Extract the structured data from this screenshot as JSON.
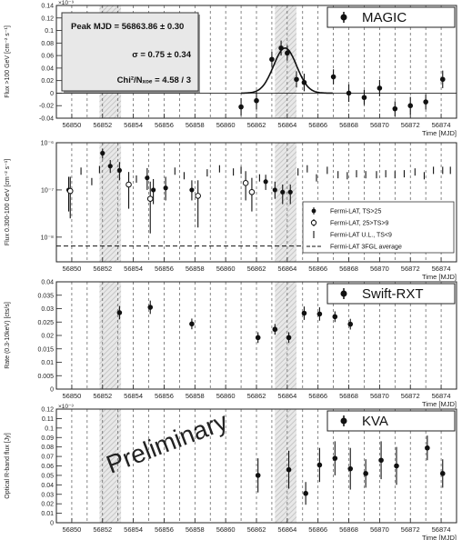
{
  "chart_data": [
    {
      "type": "scatter",
      "panel": "MAGIC",
      "title": "MAGIC",
      "ylabel": "Flux >100 GeV [cm⁻² s⁻¹]",
      "yexp": "×10⁻⁹",
      "xlabel": "Time [MJD]",
      "ylim": [
        -0.04,
        0.14
      ],
      "yticks": [
        -0.04,
        -0.02,
        0,
        0.02,
        0.04,
        0.06,
        0.08,
        0.1,
        0.12,
        0.14
      ],
      "ytick_labels": [
        "-0.04",
        "-0.02",
        "0",
        "0.02",
        "0.04",
        "0.06",
        "0.08",
        "0.1",
        "0.12",
        "0.14"
      ],
      "fit_box": {
        "line1": "Peak MJD = 56863.86 ± 0.30",
        "line2": "σ = 0.75 ± 0.34",
        "line3": "Chi²/Nₓₒₑ = 4.58 / 3"
      },
      "gaussian_fit": {
        "mean": 56863.86,
        "sigma": 0.75,
        "amplitude": 0.072
      },
      "points": [
        {
          "x": 56861.0,
          "y": -0.022,
          "err": 0.014
        },
        {
          "x": 56862.0,
          "y": -0.012,
          "err": 0.014
        },
        {
          "x": 56863.0,
          "y": 0.054,
          "err": 0.012
        },
        {
          "x": 56863.6,
          "y": 0.072,
          "err": 0.012
        },
        {
          "x": 56864.0,
          "y": 0.064,
          "err": 0.012
        },
        {
          "x": 56864.6,
          "y": 0.022,
          "err": 0.013
        },
        {
          "x": 56865.1,
          "y": 0.017,
          "err": 0.014
        },
        {
          "x": 56867.0,
          "y": 0.026,
          "err": 0.012
        },
        {
          "x": 56868.0,
          "y": 0.0,
          "err": 0.014
        },
        {
          "x": 56869.0,
          "y": -0.007,
          "err": 0.012
        },
        {
          "x": 56870.0,
          "y": 0.008,
          "err": 0.013
        },
        {
          "x": 56871.0,
          "y": -0.025,
          "err": 0.012
        },
        {
          "x": 56872.0,
          "y": -0.02,
          "err": 0.014
        },
        {
          "x": 56873.0,
          "y": -0.014,
          "err": 0.012
        },
        {
          "x": 56874.1,
          "y": 0.022,
          "err": 0.014
        }
      ]
    },
    {
      "type": "scatter",
      "panel": "Fermi-LAT",
      "ylabel": "Flux 0.300-100 GeV [cm⁻² s⁻¹]",
      "xlabel": "Time [MJD]",
      "yscale": "log",
      "ylim": [
        3e-09,
        1e-06
      ],
      "yticks": [
        1e-08,
        1e-07,
        1e-06
      ],
      "ytick_labels": [
        "10⁻⁸",
        "10⁻⁷",
        "10⁻⁶"
      ],
      "legend": {
        "position": "lower-right",
        "entries": [
          "Fermi-LAT, TS>25",
          "Fermi-LAT, 25>TS>9",
          "Fermi-LAT U.L., TS<9",
          "Fermi-LAT 3FGL average"
        ]
      },
      "average": 6.5e-09,
      "detections": [
        {
          "x": 56849.8,
          "y": 1e-07,
          "lo": 3.5e-08,
          "hi": 1.9e-07
        },
        {
          "x": 56852.0,
          "y": 6e-07,
          "lo": 4.6e-07,
          "hi": 7.4e-07
        },
        {
          "x": 56852.5,
          "y": 3.2e-07,
          "lo": 2.3e-07,
          "hi": 4.3e-07
        },
        {
          "x": 56853.1,
          "y": 2.6e-07,
          "lo": 1.6e-07,
          "hi": 3.9e-07
        },
        {
          "x": 56854.9,
          "y": 1.8e-07,
          "lo": 1e-07,
          "hi": 2.9e-07
        },
        {
          "x": 56855.3,
          "y": 1e-07,
          "lo": 5e-08,
          "hi": 1.7e-07
        },
        {
          "x": 56856.1,
          "y": 1.1e-07,
          "lo": 6e-08,
          "hi": 1.9e-07
        },
        {
          "x": 56857.8,
          "y": 1e-07,
          "lo": 6e-08,
          "hi": 1.6e-07
        },
        {
          "x": 56862.6,
          "y": 1.5e-07,
          "lo": 1e-07,
          "hi": 2.1e-07
        },
        {
          "x": 56863.2,
          "y": 1e-07,
          "lo": 6.5e-08,
          "hi": 1.5e-07
        },
        {
          "x": 56863.7,
          "y": 9e-08,
          "lo": 5e-08,
          "hi": 1.3e-07
        },
        {
          "x": 56864.2,
          "y": 9e-08,
          "lo": 5e-08,
          "hi": 1.3e-07
        }
      ],
      "marginal": [
        {
          "x": 56849.9,
          "y": 9.5e-08,
          "lo": 2.5e-08,
          "hi": 1.9e-07
        },
        {
          "x": 56853.7,
          "y": 1.3e-07,
          "lo": 4e-08,
          "hi": 2.4e-07
        },
        {
          "x": 56855.1,
          "y": 6.5e-08,
          "lo": 1.2e-08,
          "hi": 1.5e-07
        },
        {
          "x": 56858.2,
          "y": 7.5e-08,
          "lo": 1.6e-08,
          "hi": 1.6e-07
        },
        {
          "x": 56861.3,
          "y": 1.4e-07,
          "lo": 6e-08,
          "hi": 2.5e-07
        },
        {
          "x": 56861.7,
          "y": 9e-08,
          "lo": 3.5e-08,
          "hi": 1.8e-07
        }
      ],
      "upper_limits": [
        {
          "x": 56850.6,
          "y": 2.5e-07
        },
        {
          "x": 56851.3,
          "y": 1.5e-07
        },
        {
          "x": 56851.8,
          "y": 2.7e-07
        },
        {
          "x": 56854.2,
          "y": 1.7e-07
        },
        {
          "x": 56856.7,
          "y": 2.5e-07
        },
        {
          "x": 56857.3,
          "y": 2e-07
        },
        {
          "x": 56858.8,
          "y": 2.3e-07
        },
        {
          "x": 56859.6,
          "y": 2.8e-07
        },
        {
          "x": 56860.5,
          "y": 2.4e-07
        },
        {
          "x": 56861.0,
          "y": 2.6e-07
        },
        {
          "x": 56862.2,
          "y": 1.8e-07
        },
        {
          "x": 56864.7,
          "y": 2.4e-07
        },
        {
          "x": 56865.3,
          "y": 2.8e-07
        },
        {
          "x": 56865.9,
          "y": 1.8e-07
        },
        {
          "x": 56866.6,
          "y": 2.6e-07
        },
        {
          "x": 56867.3,
          "y": 2.1e-07
        },
        {
          "x": 56867.9,
          "y": 2e-07
        },
        {
          "x": 56868.5,
          "y": 2.2e-07
        },
        {
          "x": 56869.1,
          "y": 2.1e-07
        },
        {
          "x": 56869.8,
          "y": 2.1e-07
        },
        {
          "x": 56870.4,
          "y": 2.2e-07
        },
        {
          "x": 56871.0,
          "y": 2.1e-07
        },
        {
          "x": 56871.6,
          "y": 2.2e-07
        },
        {
          "x": 56872.3,
          "y": 2.4e-07
        },
        {
          "x": 56872.9,
          "y": 2e-07
        },
        {
          "x": 56873.5,
          "y": 2.6e-07
        },
        {
          "x": 56874.1,
          "y": 2.6e-07
        },
        {
          "x": 56874.6,
          "y": 2.6e-07
        }
      ]
    },
    {
      "type": "scatter",
      "panel": "Swift-RXT",
      "title": "Swift-RXT",
      "ylabel": "Rate (0.3-10keV) [cts/s]",
      "xlabel": "Time [MJD]",
      "ylim": [
        0,
        0.04
      ],
      "yticks": [
        0,
        0.005,
        0.01,
        0.015,
        0.02,
        0.025,
        0.03,
        0.035,
        0.04
      ],
      "ytick_labels": [
        "0",
        "0.005",
        "0.01",
        "0.015",
        "0.02",
        "0.025",
        "0.03",
        "0.035",
        "0.04"
      ],
      "points": [
        {
          "x": 56853.1,
          "y": 0.0285,
          "err": 0.0025
        },
        {
          "x": 56855.1,
          "y": 0.0305,
          "err": 0.0025
        },
        {
          "x": 56857.8,
          "y": 0.0243,
          "err": 0.002
        },
        {
          "x": 56862.1,
          "y": 0.0192,
          "err": 0.002
        },
        {
          "x": 56863.2,
          "y": 0.0223,
          "err": 0.002
        },
        {
          "x": 56864.1,
          "y": 0.0192,
          "err": 0.002
        },
        {
          "x": 56865.1,
          "y": 0.0283,
          "err": 0.0025
        },
        {
          "x": 56866.1,
          "y": 0.028,
          "err": 0.0025
        },
        {
          "x": 56867.1,
          "y": 0.027,
          "err": 0.002
        },
        {
          "x": 56868.1,
          "y": 0.0242,
          "err": 0.002
        }
      ]
    },
    {
      "type": "scatter",
      "panel": "KVA",
      "title": "KVA",
      "ylabel": "Optical R-band flux [Jy]",
      "yexp": "×10⁻³",
      "xlabel": "Time [MJD]",
      "ylim": [
        0,
        0.12
      ],
      "yticks": [
        0,
        0.01,
        0.02,
        0.03,
        0.04,
        0.05,
        0.06,
        0.07,
        0.08,
        0.09,
        0.1,
        0.11,
        0.12
      ],
      "ytick_labels": [
        "0",
        "0.01",
        "0.02",
        "0.03",
        "0.04",
        "0.05",
        "0.06",
        "0.07",
        "0.08",
        "0.09",
        "0.1",
        "0.11",
        "0.12"
      ],
      "watermark": "Preliminary",
      "points": [
        {
          "x": 56862.1,
          "y": 0.05,
          "err": 0.018
        },
        {
          "x": 56864.1,
          "y": 0.056,
          "err": 0.02
        },
        {
          "x": 56865.2,
          "y": 0.031,
          "err": 0.012
        },
        {
          "x": 56866.1,
          "y": 0.061,
          "err": 0.018
        },
        {
          "x": 56867.1,
          "y": 0.068,
          "err": 0.018
        },
        {
          "x": 56868.1,
          "y": 0.057,
          "err": 0.022
        },
        {
          "x": 56869.1,
          "y": 0.052,
          "err": 0.015
        },
        {
          "x": 56870.1,
          "y": 0.066,
          "err": 0.02
        },
        {
          "x": 56871.1,
          "y": 0.06,
          "err": 0.02
        },
        {
          "x": 56873.1,
          "y": 0.079,
          "err": 0.013
        },
        {
          "x": 56874.1,
          "y": 0.052,
          "err": 0.015
        }
      ]
    }
  ],
  "shared_x": {
    "xlim": [
      56849,
      56875
    ],
    "ticks": [
      56850,
      56852,
      56854,
      56856,
      56858,
      56860,
      56862,
      56864,
      56866,
      56868,
      56870,
      56872,
      56874
    ],
    "tick_labels": [
      "56850",
      "56852",
      "56854",
      "56856",
      "56858",
      "56860",
      "56862",
      "56864",
      "56866",
      "56868",
      "56870",
      "56872",
      "56874"
    ],
    "dashed_lines_every": 1,
    "shaded_bands": [
      [
        56851.8,
        56853.2
      ],
      [
        56863.2,
        56864.6
      ]
    ]
  },
  "colors": {
    "marker": "#111111",
    "band": "#bdbdbd",
    "frame": "#222222",
    "grid": "#555555"
  }
}
